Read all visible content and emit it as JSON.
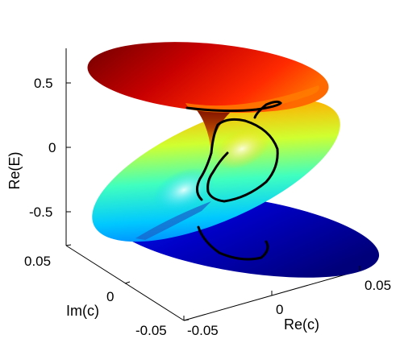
{
  "chart_data": {
    "type": "surface3d",
    "xlabel": "Re(c)",
    "ylabel": "Im(c)",
    "zlabel": "Re(E)",
    "xlim": [
      -0.05,
      0.05
    ],
    "ylim": [
      -0.05,
      0.05
    ],
    "zlim": [
      -0.75,
      0.75
    ],
    "x_ticks": [
      "-0.05",
      "0",
      "0.05"
    ],
    "y_ticks": [
      "-0.05",
      "0",
      "0.05"
    ],
    "z_ticks": [
      "0.5",
      "0",
      "-0.5"
    ],
    "colormap": "jet",
    "grid": false,
    "sheets": [
      {
        "z_center": 0.6,
        "color_level": 1.0
      },
      {
        "z_center": 0.0,
        "color_level": 0.55
      },
      {
        "z_center": -0.6,
        "color_level": 0.05
      }
    ],
    "curve_color": "#000000"
  }
}
